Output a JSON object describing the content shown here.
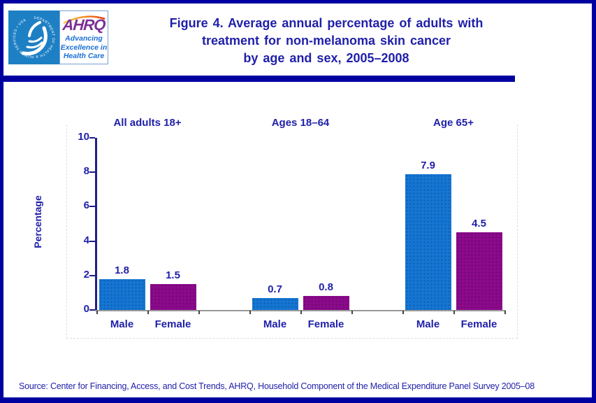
{
  "header": {
    "logo": {
      "seal_text": "DEPARTMENT OF HEALTH & HUMAN SERVICES • USA",
      "ahrq_acronym": "AHRQ",
      "tagline_lines": [
        "Advancing",
        "Excellence in",
        "Health Care"
      ]
    },
    "title_lines": [
      "Figure 4. Average annual percentage of adults with",
      "treatment for non-melanoma skin cancer",
      "by age and sex, 2005–2008"
    ]
  },
  "chart_data": {
    "type": "bar",
    "title": "Figure 4. Average annual percentage of adults with treatment for non-melanoma skin cancer by age and sex, 2005–2008",
    "xlabel": "",
    "ylabel": "Percentage",
    "ylim": [
      0,
      10
    ],
    "yticks": [
      0,
      2,
      4,
      6,
      8,
      10
    ],
    "grid": false,
    "legend_position": "none",
    "value_labels_shown": true,
    "groups": [
      {
        "label": "All adults 18+",
        "categories": [
          "Male",
          "Female"
        ],
        "values": [
          1.8,
          1.5
        ]
      },
      {
        "label": "Ages 18–64",
        "categories": [
          "Male",
          "Female"
        ],
        "values": [
          0.7,
          0.8
        ]
      },
      {
        "label": "Age 65+",
        "categories": [
          "Male",
          "Female"
        ],
        "values": [
          7.9,
          4.5
        ]
      }
    ],
    "series_colors": {
      "male": "#1576d2",
      "female": "#8b0a8b"
    }
  },
  "footer": {
    "source": "Source: Center for Financing, Access, and Cost Trends, AHRQ, Household Component of the Medical Expenditure Panel Survey 2005–08"
  },
  "colors": {
    "text_navy": "#1f1faa",
    "border_navy": "#0000a0",
    "male_bar": "#1576d2",
    "female_bar": "#8b0a8b",
    "logo_blue": "#1e80c4",
    "ahrq_purple": "#7d2f96",
    "tagline_blue": "#1a6fd4"
  }
}
